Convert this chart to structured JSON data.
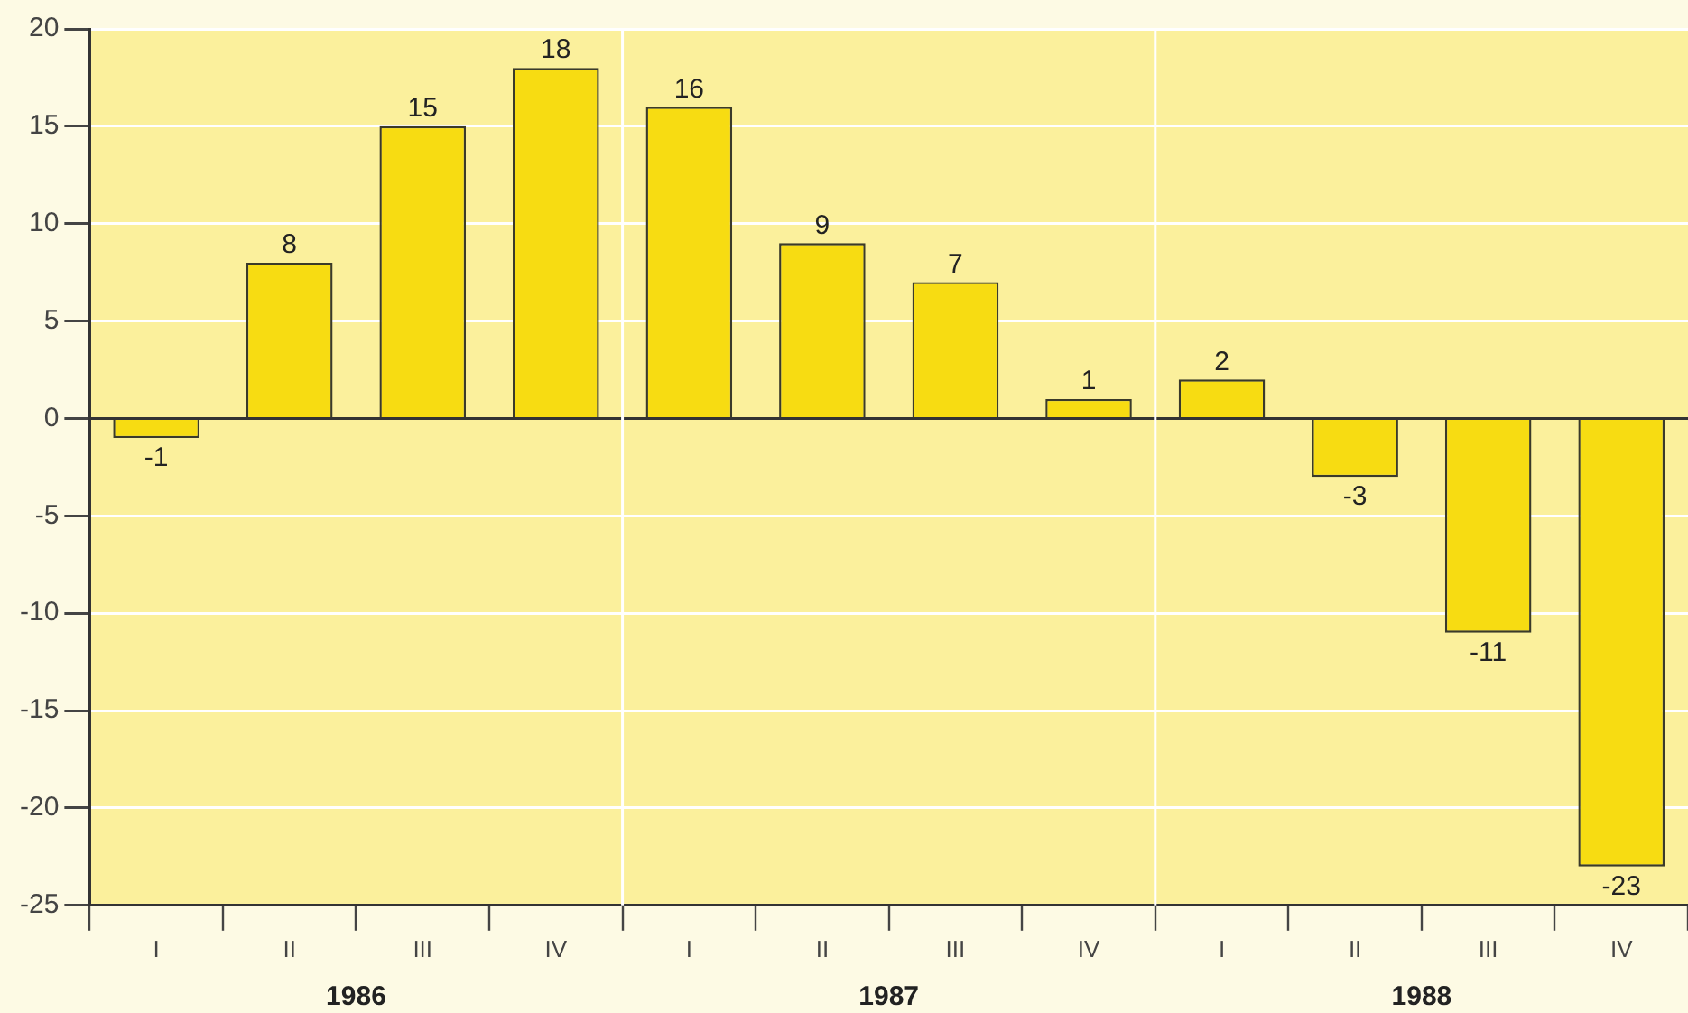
{
  "chart_data": {
    "type": "bar",
    "categories": [
      "I",
      "II",
      "III",
      "IV",
      "I",
      "II",
      "III",
      "IV",
      "I",
      "II",
      "III",
      "IV"
    ],
    "values": [
      -1,
      8,
      15,
      18,
      16,
      9,
      7,
      1,
      2,
      -3,
      -11,
      -23
    ],
    "color": "#f7dc12",
    "ylim": [
      -25,
      20
    ],
    "yticks": [
      -25,
      -20,
      -15,
      -10,
      -5,
      0,
      5,
      10,
      15,
      20
    ],
    "grid": "y",
    "legend": false,
    "data_labels": true,
    "annotations": [
      "1986",
      "1987",
      "1988"
    ]
  }
}
